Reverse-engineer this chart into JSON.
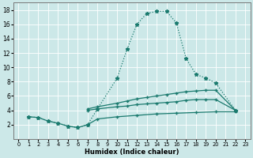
{
  "background_color": "#cce8e8",
  "grid_color": "#b0d8d8",
  "line_color": "#1a7a6e",
  "xlabel": "Humidex (Indice chaleur)",
  "xlim": [
    -0.5,
    23.5
  ],
  "ylim": [
    0,
    19
  ],
  "xticks": [
    0,
    1,
    2,
    3,
    4,
    5,
    6,
    7,
    8,
    9,
    10,
    11,
    12,
    13,
    14,
    15,
    16,
    17,
    18,
    19,
    20,
    21,
    22,
    23
  ],
  "yticks": [
    2,
    4,
    6,
    8,
    10,
    12,
    14,
    16,
    18
  ],
  "curve_main_x": [
    1,
    2,
    3,
    4,
    5,
    6,
    7,
    8,
    10,
    11,
    12,
    13,
    14,
    15,
    16,
    17,
    18,
    19,
    20,
    22
  ],
  "curve_main_y": [
    3.1,
    3.0,
    2.5,
    2.2,
    1.8,
    1.6,
    2.0,
    4.2,
    8.5,
    12.5,
    16.0,
    17.5,
    17.8,
    17.8,
    16.2,
    11.2,
    9.0,
    8.5,
    7.8,
    4.0
  ],
  "curve_mid1_x": [
    7,
    8,
    10,
    11,
    12,
    13,
    14,
    15,
    16,
    17,
    18,
    19,
    20,
    22
  ],
  "curve_mid1_y": [
    4.2,
    4.5,
    5.0,
    5.3,
    5.6,
    5.8,
    6.0,
    6.2,
    6.4,
    6.6,
    6.7,
    6.8,
    6.8,
    4.0
  ],
  "curve_mid2_x": [
    7,
    8,
    10,
    11,
    12,
    13,
    14,
    15,
    16,
    17,
    18,
    19,
    20,
    22
  ],
  "curve_mid2_y": [
    4.0,
    4.2,
    4.5,
    4.6,
    4.8,
    4.9,
    5.0,
    5.1,
    5.2,
    5.4,
    5.5,
    5.5,
    5.5,
    4.0
  ],
  "curve_low_x": [
    1,
    2,
    3,
    4,
    5,
    6,
    7,
    8,
    10,
    12,
    14,
    16,
    18,
    20,
    22
  ],
  "curve_low_y": [
    3.1,
    3.0,
    2.5,
    2.2,
    1.8,
    1.6,
    2.0,
    2.8,
    3.1,
    3.3,
    3.5,
    3.6,
    3.7,
    3.8,
    3.8
  ]
}
